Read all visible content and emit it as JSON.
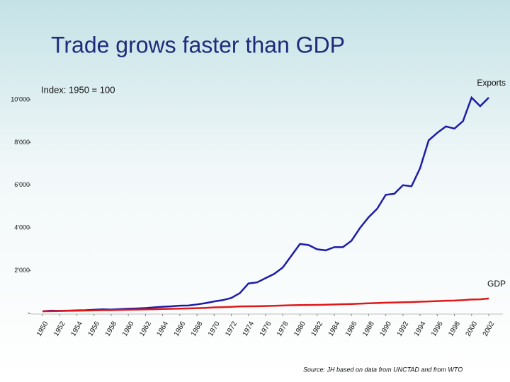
{
  "chart_data": {
    "type": "line",
    "title": "Trade grows faster than GDP",
    "subtitle": "Index: 1950 = 100",
    "source": "Source: JH based on data from UNCTAD and from WTO",
    "x": [
      1950,
      1951,
      1952,
      1953,
      1954,
      1955,
      1956,
      1957,
      1958,
      1959,
      1960,
      1961,
      1962,
      1963,
      1964,
      1965,
      1966,
      1967,
      1968,
      1969,
      1970,
      1971,
      1972,
      1973,
      1974,
      1975,
      1976,
      1977,
      1978,
      1979,
      1980,
      1981,
      1982,
      1983,
      1984,
      1985,
      1986,
      1987,
      1988,
      1989,
      1990,
      1991,
      1992,
      1993,
      1994,
      1995,
      1996,
      1997,
      1998,
      1999,
      2000,
      2001,
      2002
    ],
    "series": [
      {
        "name": "Exports",
        "color": "#1c1ca8",
        "values": [
          100,
          130,
          120,
          130,
          140,
          150,
          170,
          190,
          180,
          200,
          220,
          230,
          250,
          280,
          310,
          330,
          360,
          370,
          420,
          480,
          560,
          620,
          720,
          950,
          1400,
          1450,
          1650,
          1850,
          2150,
          2700,
          3250,
          3200,
          3000,
          2950,
          3100,
          3100,
          3400,
          4000,
          4500,
          4900,
          5550,
          5600,
          6000,
          5950,
          6800,
          8100,
          8450,
          8750,
          8650,
          9000,
          10100,
          9700,
          10100
        ]
      },
      {
        "name": "GDP",
        "color": "#e01818",
        "values": [
          100,
          105,
          110,
          118,
          125,
          132,
          140,
          148,
          153,
          160,
          170,
          178,
          185,
          195,
          205,
          215,
          225,
          233,
          243,
          258,
          280,
          290,
          305,
          325,
          330,
          335,
          345,
          355,
          368,
          380,
          390,
          395,
          398,
          405,
          420,
          430,
          440,
          455,
          470,
          485,
          500,
          510,
          520,
          530,
          545,
          560,
          575,
          590,
          600,
          620,
          650,
          660,
          700
        ]
      }
    ],
    "xlim": [
      1950,
      2002
    ],
    "xticks": [
      1950,
      1952,
      1954,
      1956,
      1958,
      1960,
      1962,
      1964,
      1966,
      1968,
      1970,
      1972,
      1974,
      1976,
      1978,
      1980,
      1982,
      1984,
      1986,
      1988,
      1990,
      1992,
      1994,
      1996,
      1998,
      2000,
      2002
    ],
    "ylim": [
      0,
      10000
    ],
    "yticks": [
      {
        "value": 0,
        "label": "-"
      },
      {
        "value": 2000,
        "label": "2'000"
      },
      {
        "value": 4000,
        "label": "4'000"
      },
      {
        "value": 6000,
        "label": "6'000"
      },
      {
        "value": 8000,
        "label": "8'000"
      },
      {
        "value": 10000,
        "label": "10'000"
      }
    ]
  }
}
